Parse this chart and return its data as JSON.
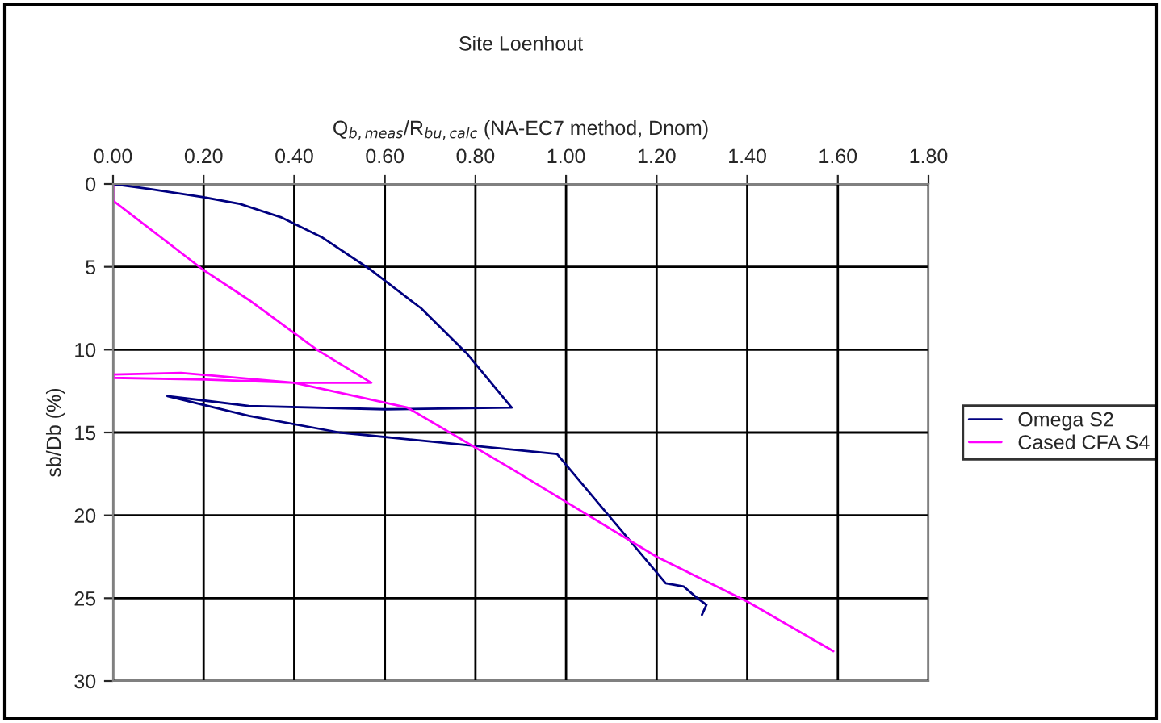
{
  "chart_data": {
    "type": "line",
    "title": "Site Loenhout",
    "xlabel": "Q$_{b,meas}$/R$_{bu,calc}$ (NA-EC7 method, Dnom)",
    "ylabel": "sb/Db (%)",
    "xlim": [
      0,
      1.8
    ],
    "xticks": [
      {
        "value": 0,
        "label": "0.00"
      },
      {
        "value": 0.2,
        "label": "0.20"
      },
      {
        "value": 0.4,
        "label": "0.40"
      },
      {
        "value": 0.6,
        "label": "0.60"
      },
      {
        "value": 0.8,
        "label": "0.80"
      },
      {
        "value": 1.0,
        "label": "1.00"
      },
      {
        "value": 1.2,
        "label": "1.20"
      },
      {
        "value": 1.4,
        "label": "1.40"
      },
      {
        "value": 1.6,
        "label": "1.60"
      },
      {
        "value": 1.8,
        "label": "1.80"
      }
    ],
    "ylim": [
      30,
      0
    ],
    "yticks": [
      0,
      5,
      10,
      15,
      20,
      25,
      30
    ],
    "grid": true,
    "legend": "right",
    "marker": "none",
    "line_style": "solid",
    "series": [
      {
        "name": "Omega S2",
        "color": "#000080",
        "x": [
          0,
          0.08,
          0.2,
          0.28,
          0.37,
          0.46,
          0.57,
          0.68,
          0.78,
          0.88,
          0.6,
          0.3,
          0.12,
          0.3,
          0.5,
          0.98,
          1.22,
          1.26,
          1.29,
          1.31,
          1.3
        ],
        "values": [
          0,
          0.3,
          0.8,
          1.2,
          2,
          3.2,
          5.2,
          7.5,
          10.2,
          13.5,
          13.6,
          13.4,
          12.8,
          14,
          15,
          16.3,
          24.1,
          24.3,
          25,
          25.4,
          26
        ]
      },
      {
        "name": "Cased CFA S4",
        "color": "#ff00ff",
        "x": [
          0,
          0,
          0.2,
          0.3,
          0.45,
          0.57,
          0.4,
          0.2,
          0,
          0,
          0.15,
          0.4,
          0.65,
          0.88,
          1.2,
          1.4,
          1.59
        ],
        "values": [
          0,
          1,
          5.2,
          7,
          10,
          12,
          12,
          11.8,
          11.7,
          11.5,
          11.4,
          12,
          13.5,
          17.2,
          22.5,
          25.2,
          28.2
        ]
      }
    ]
  }
}
